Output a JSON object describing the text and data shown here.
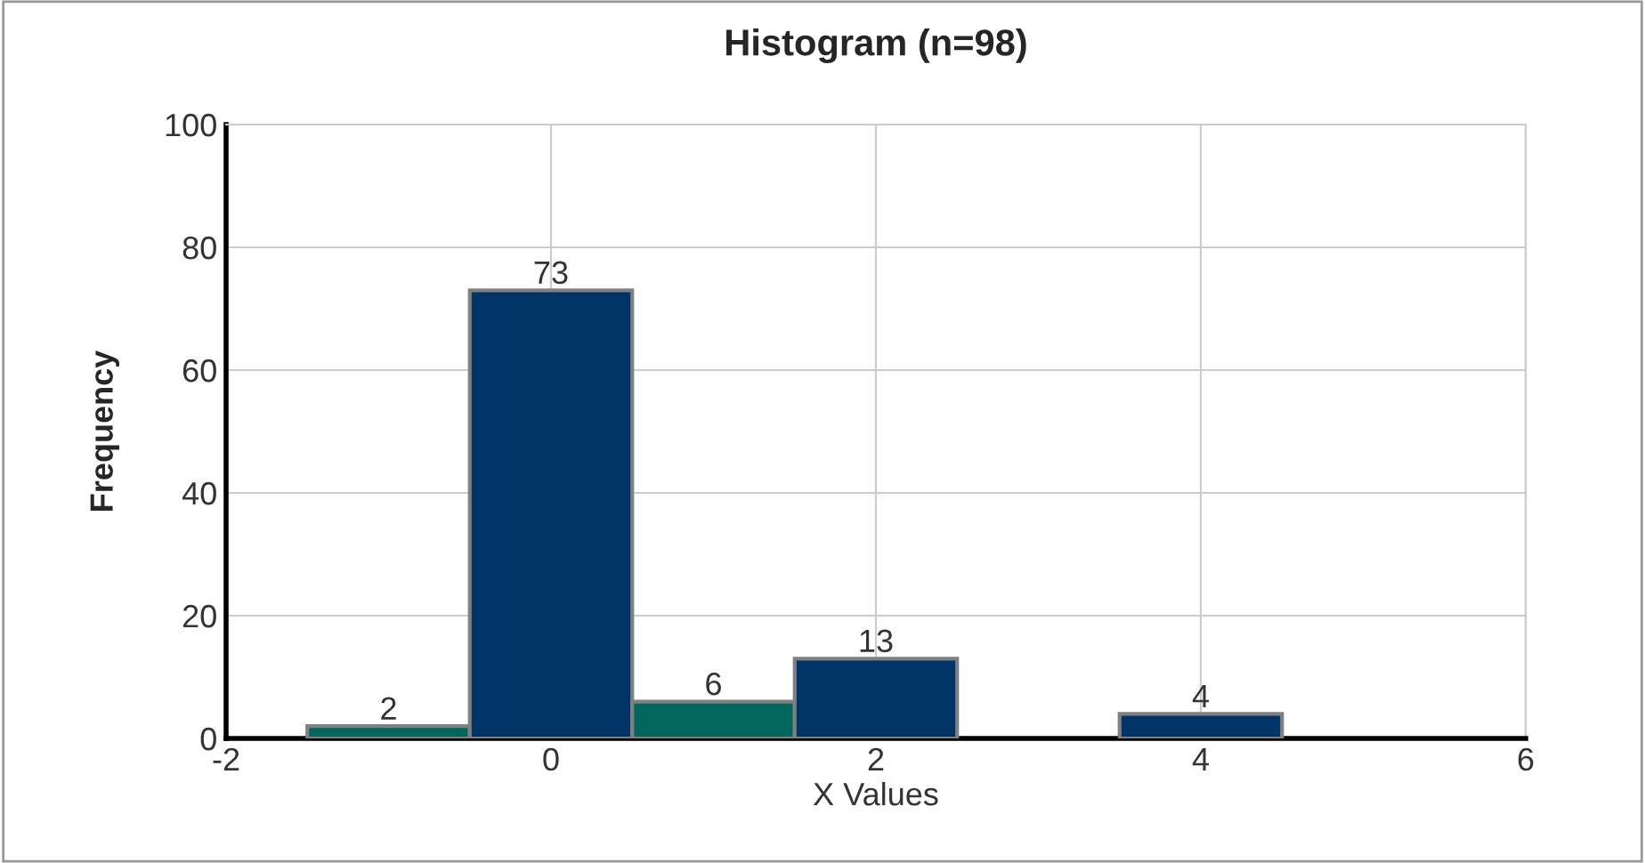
{
  "chart_data": {
    "type": "histogram",
    "title": "Histogram (n=98)",
    "xlabel": "X Values",
    "ylabel": "Frequency",
    "bins": [
      -1.5,
      -0.5,
      0.5,
      1.5,
      2.5,
      3.5,
      4.5
    ],
    "values": [
      2,
      73,
      6,
      13,
      0,
      4
    ],
    "value_labels": [
      "2",
      "73",
      "6",
      "13",
      null,
      "4"
    ],
    "colors": [
      "#00665e",
      "#003366",
      "#00665e",
      "#003366",
      "#003366",
      "#003366"
    ],
    "xlim": [
      -2,
      6
    ],
    "xticks": [
      -2,
      0,
      2,
      4,
      6
    ],
    "ylim": [
      0,
      100
    ],
    "yticks": [
      0,
      20,
      40,
      60,
      80,
      100
    ],
    "grid": true
  }
}
